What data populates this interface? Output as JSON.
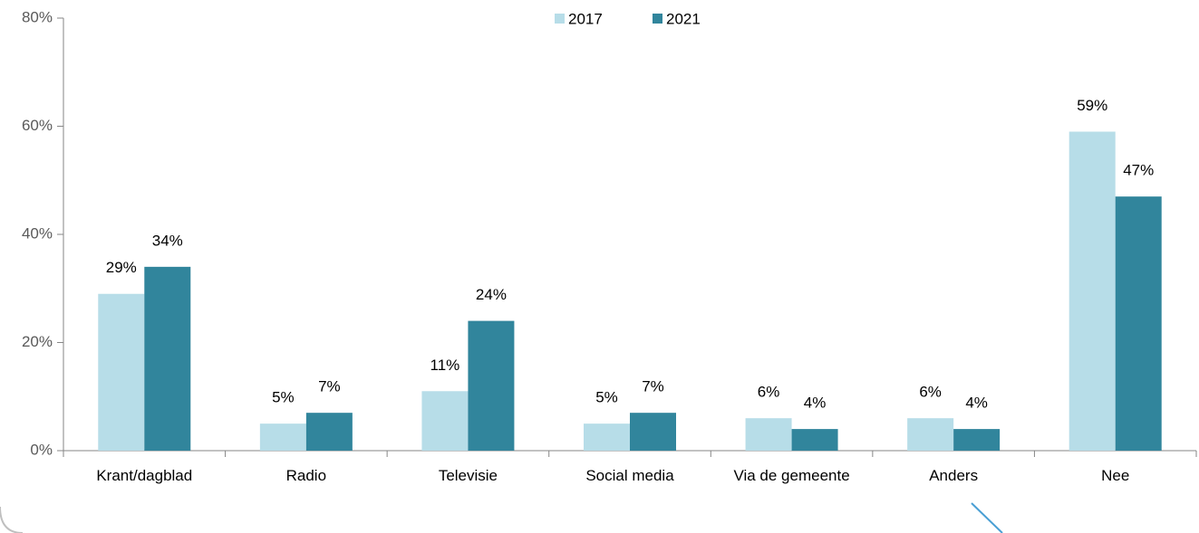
{
  "chart_data": {
    "type": "bar",
    "categories": [
      "Krant/dagblad",
      "Radio",
      "Televisie",
      "Social media",
      "Via de gemeente",
      "Anders",
      "Nee"
    ],
    "series": [
      {
        "name": "2017",
        "color": "#b7dde8",
        "values": [
          29,
          5,
          11,
          5,
          6,
          6,
          59
        ],
        "value_labels": [
          "29%",
          "5%",
          "11%",
          "5%",
          "6%",
          "6%",
          "59%"
        ]
      },
      {
        "name": "2021",
        "color": "#31859c",
        "values": [
          34,
          7,
          24,
          7,
          4,
          4,
          47
        ],
        "value_labels": [
          "34%",
          "7%",
          "24%",
          "7%",
          "4%",
          "4%",
          "47%"
        ]
      }
    ],
    "ylim": [
      0,
      80
    ],
    "yticks": [
      {
        "value": 0,
        "label": "0%"
      },
      {
        "value": 20,
        "label": "20%"
      },
      {
        "value": 40,
        "label": "40%"
      },
      {
        "value": 60,
        "label": "60%"
      },
      {
        "value": 80,
        "label": "80%"
      }
    ],
    "legend": "top"
  }
}
